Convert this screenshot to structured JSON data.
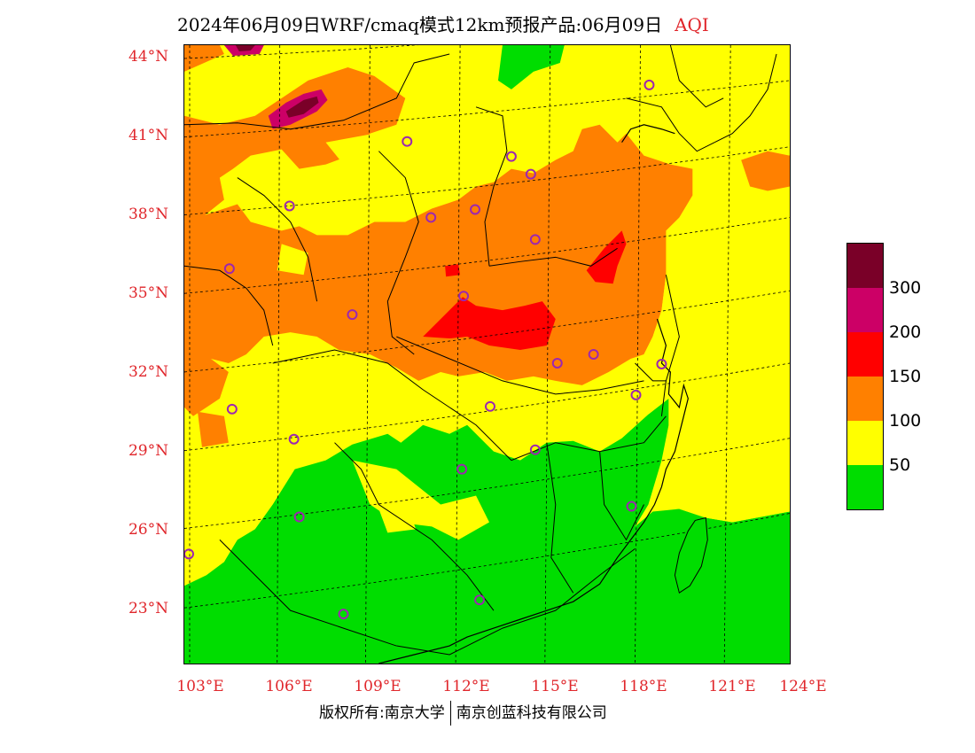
{
  "title": {
    "text": "2024年06月09日WRF/cmaq模式12km预报产品:06月09日",
    "tag": "AQI"
  },
  "lat_labels": [
    "44°N",
    "41°N",
    "38°N",
    "35°N",
    "32°N",
    "29°N",
    "26°N",
    "23°N"
  ],
  "lon_labels": [
    "103°E",
    "106°E",
    "109°E",
    "112°E",
    "115°E",
    "118°E",
    "121°E",
    "124°E"
  ],
  "legend": {
    "labels": [
      "300",
      "200",
      "150",
      "100",
      "50"
    ],
    "colors": [
      "#7a0028",
      "#cc0066",
      "#ff0000",
      "#ff8000",
      "#ffff00",
      "#00dd00"
    ]
  },
  "footer": {
    "left": "版权所有:南京大学",
    "right": "南京创蓝科技有限公司"
  }
}
